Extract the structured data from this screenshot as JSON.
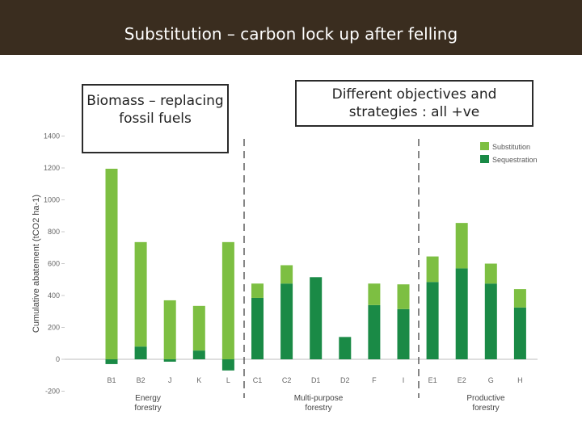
{
  "header": {
    "title": "Substitution – carbon lock up after felling"
  },
  "callouts": {
    "left": "Biomass – replacing fossil fuels",
    "right": "Different objectives and strategies : all +ve"
  },
  "colors": {
    "substitution": "#7dbf42",
    "sequestration": "#1a8a46",
    "header_bg": "#3a2d1f"
  },
  "chart_data": {
    "type": "bar",
    "stacked": true,
    "ylabel": "Cumulative abatement (tCO2 ha-1)",
    "ylim": [
      -200,
      1400
    ],
    "yticks": [
      -200,
      0,
      200,
      400,
      600,
      800,
      1000,
      1200,
      1400
    ],
    "categories": [
      "B1",
      "B2",
      "J",
      "K",
      "L",
      "C1",
      "C2",
      "D1",
      "D2",
      "F",
      "I",
      "E1",
      "E2",
      "G",
      "H"
    ],
    "series": [
      {
        "name": "Sequestration",
        "values": [
          -30,
          80,
          -15,
          55,
          -70,
          385,
          475,
          515,
          140,
          340,
          315,
          485,
          570,
          475,
          325
        ]
      },
      {
        "name": "Substitution",
        "values": [
          1195,
          655,
          370,
          280,
          735,
          90,
          115,
          0,
          0,
          135,
          155,
          160,
          285,
          125,
          115
        ]
      }
    ],
    "groups": [
      {
        "label": "Energy forestry",
        "categories": [
          "B1",
          "B2",
          "J",
          "K",
          "L"
        ]
      },
      {
        "label": "Multi-purpose forestry",
        "categories": [
          "C1",
          "C2",
          "D1",
          "D2",
          "F",
          "I"
        ]
      },
      {
        "label": "Productive forestry",
        "categories": [
          "E1",
          "E2",
          "G",
          "H"
        ]
      }
    ],
    "legend": {
      "placement": "top-right",
      "entries": [
        "Substitution",
        "Sequestration"
      ]
    },
    "grid": false
  }
}
